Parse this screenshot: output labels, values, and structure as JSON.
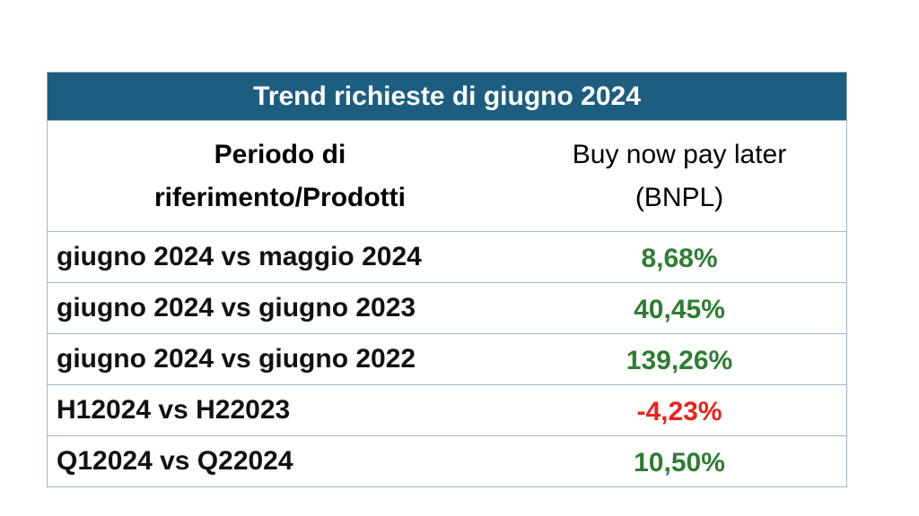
{
  "table": {
    "title": "Trend richieste di giugno 2024",
    "headers": [
      "Periodo di riferimento/Prodotti",
      "Buy now pay later (BNPL)"
    ],
    "rows": [
      [
        "giugno 2024 vs maggio 2024",
        "8,68%"
      ],
      [
        "giugno 2024 vs giugno 2023",
        "40,45%"
      ],
      [
        "giugno 2024 vs giugno 2022",
        "139,26%"
      ],
      [
        "H12024 vs H22023",
        "-4,23%"
      ],
      [
        "Q12024 vs Q22024",
        "10,50%"
      ]
    ]
  }
}
